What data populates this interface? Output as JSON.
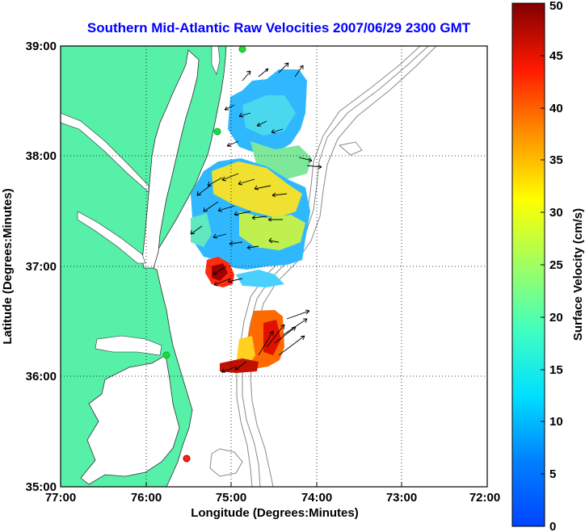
{
  "title": "Southern Mid-Atlantic Raw Velocities 2007/06/29 2300 GMT",
  "map": {
    "xlabel": "Longitude (Degrees:Minutes)",
    "ylabel": "Latitude (Degrees:Minutes)",
    "x_ticks": [
      "77:00",
      "76:00",
      "75:00",
      "74:00",
      "73:00",
      "72:00"
    ],
    "y_ticks": [
      "39:00",
      "38:00",
      "37:00",
      "36:00",
      "35:00"
    ],
    "lon_range": [
      -77,
      -72
    ],
    "lat_range": [
      35,
      39
    ],
    "grid": "dotted",
    "colors": {
      "land": "#56f0a8",
      "water": "#ffffff",
      "coast": "#333333",
      "isobath": "#8a8a8a",
      "arrow": "#000000"
    }
  },
  "colorbar": {
    "label": "Surface Velocity (cm/s)",
    "ticks": [
      "0",
      "5",
      "10",
      "15",
      "20",
      "25",
      "30",
      "35",
      "40",
      "45",
      "50"
    ],
    "range": [
      0,
      50
    ]
  }
}
